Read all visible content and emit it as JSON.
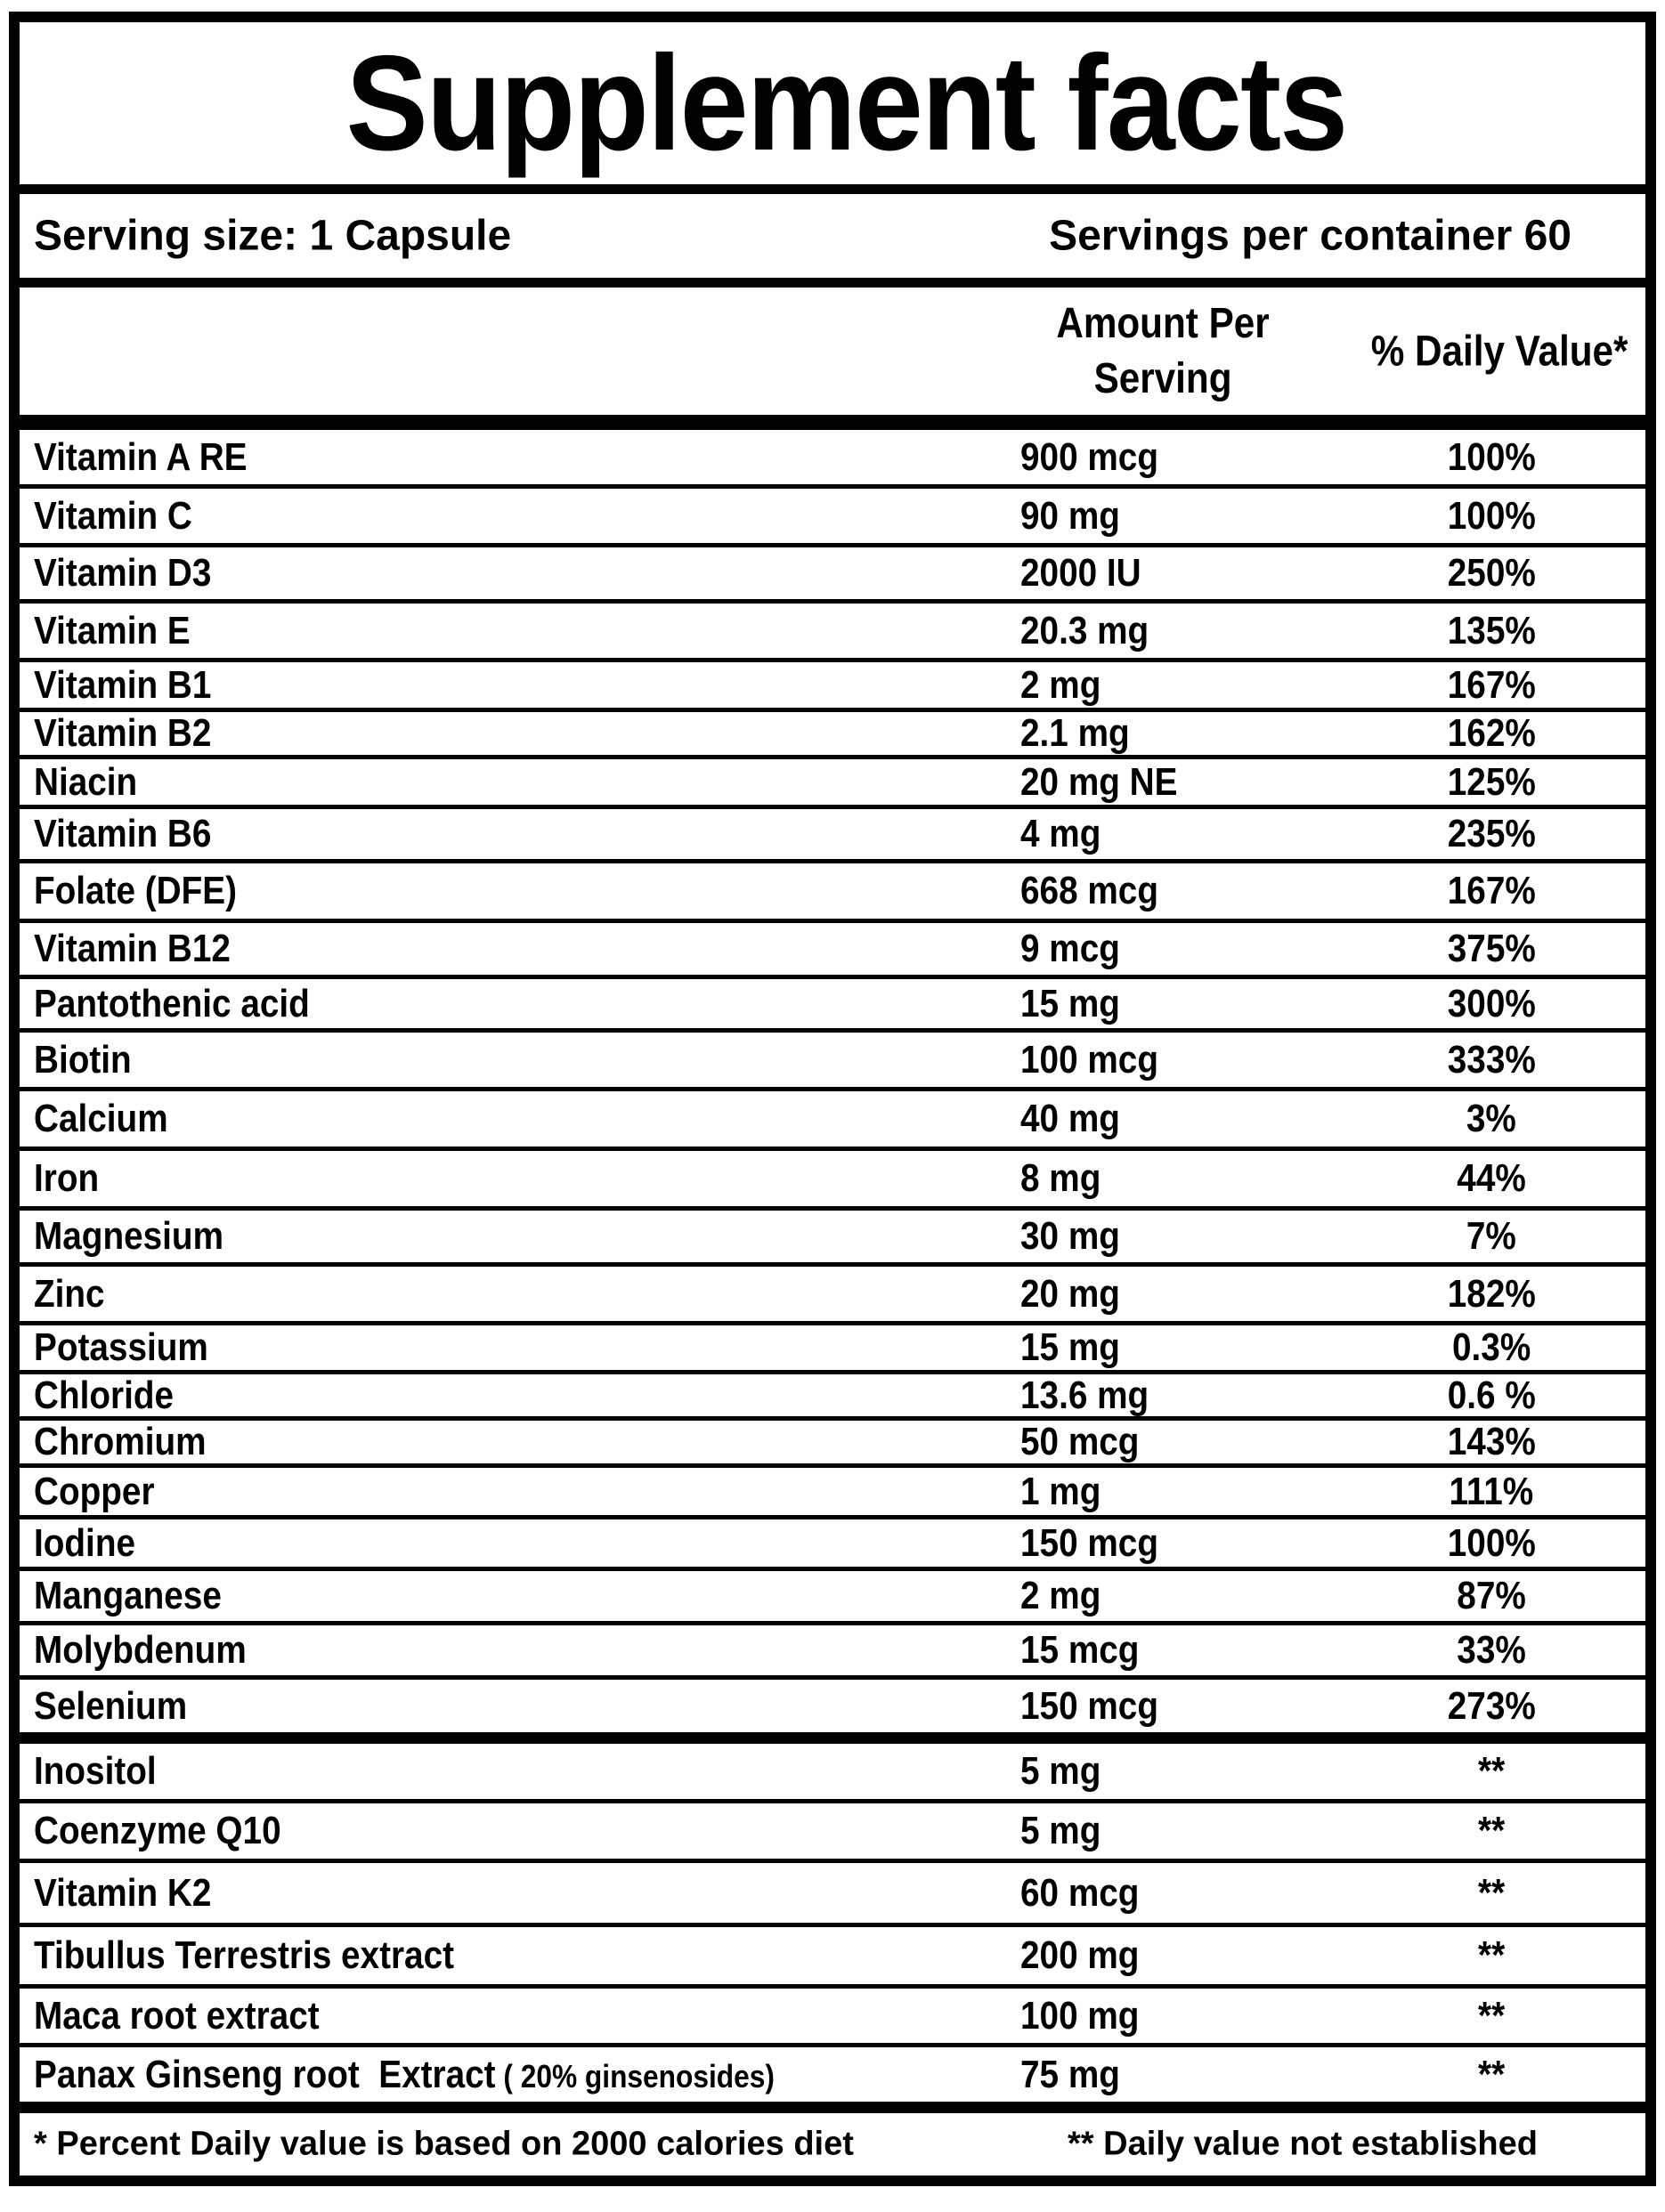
{
  "title": "Supplement facts",
  "serving": {
    "size_label": "Serving size: 1 Capsule",
    "per_container": "Servings per container 60"
  },
  "columns": {
    "amount_header": [
      "Amount Per",
      "Serving"
    ],
    "daily_value_header": "% Daily Value*"
  },
  "colors": {
    "ink": "#000000",
    "paper": "#ffffff"
  },
  "main_rows": [
    {
      "label": "Vitamin A RE",
      "amount": "900 mcg",
      "daily_value": "100%"
    },
    {
      "label": "Vitamin C",
      "amount": "90 mg",
      "daily_value": "100%"
    },
    {
      "label": "Vitamin D3",
      "amount": "2000 IU",
      "daily_value": "250%"
    },
    {
      "label": "Vitamin E",
      "amount": "20.3 mg",
      "daily_value": "135%"
    },
    {
      "label": "Vitamin B1",
      "amount": "2 mg",
      "daily_value": "167%"
    },
    {
      "label": "Vitamin B2",
      "amount": "2.1 mg",
      "daily_value": "162%"
    },
    {
      "label": "Niacin",
      "amount": "20 mg NE",
      "daily_value": "125%"
    },
    {
      "label": "Vitamin B6",
      "amount": "4 mg",
      "daily_value": "235%"
    },
    {
      "label": "Folate (DFE)",
      "amount": "668 mcg",
      "daily_value": "167%"
    },
    {
      "label": "Vitamin B12",
      "amount": "9 mcg",
      "daily_value": "375%"
    },
    {
      "label": "Pantothenic acid",
      "amount": "15 mg",
      "daily_value": "300%"
    },
    {
      "label": "Biotin",
      "amount": "100 mcg",
      "daily_value": "333%"
    },
    {
      "label": "Calcium",
      "amount": "40 mg",
      "daily_value": "3%"
    },
    {
      "label": "Iron",
      "amount": "8 mg",
      "daily_value": "44%"
    },
    {
      "label": "Magnesium",
      "amount": "30 mg",
      "daily_value": "7%"
    },
    {
      "label": "Zinc",
      "amount": "20 mg",
      "daily_value": "182%"
    },
    {
      "label": "Potassium",
      "amount": "15 mg",
      "daily_value": "0.3%"
    },
    {
      "label": "Chloride",
      "amount": "13.6 mg",
      "daily_value": "0.6 %"
    },
    {
      "label": "Chromium",
      "amount": "50 mcg",
      "daily_value": "143%"
    },
    {
      "label": "Copper",
      "amount": "1 mg",
      "daily_value": "111%"
    },
    {
      "label": "Iodine",
      "amount": "150 mcg",
      "daily_value": "100%"
    },
    {
      "label": "Manganese",
      "amount": "2 mg",
      "daily_value": "87%"
    },
    {
      "label": "Molybdenum",
      "amount": "15 mcg",
      "daily_value": "33%"
    },
    {
      "label": "Selenium",
      "amount": "150 mcg",
      "daily_value": "273%"
    }
  ],
  "secondary_rows": [
    {
      "label": "Inositol",
      "amount": "5 mg",
      "daily_value": "**"
    },
    {
      "label": "Coenzyme Q10",
      "amount": "5 mg",
      "daily_value": "**"
    },
    {
      "label": "Vitamin K2",
      "amount": "60 mcg",
      "daily_value": "**"
    },
    {
      "label": "Tibullus Terrestris extract",
      "amount": "200 mg",
      "daily_value": "**"
    },
    {
      "label": "Maca root extract",
      "amount": "100 mg",
      "daily_value": "**"
    },
    {
      "label": "Panax Ginseng root  Extract",
      "label_suffix": " ( 20% ginsenosides)",
      "amount": "75 mg",
      "daily_value": "**"
    }
  ],
  "footnotes": {
    "left": "* Percent Daily value is based on 2000 calories diet",
    "right": "** Daily value not established"
  }
}
